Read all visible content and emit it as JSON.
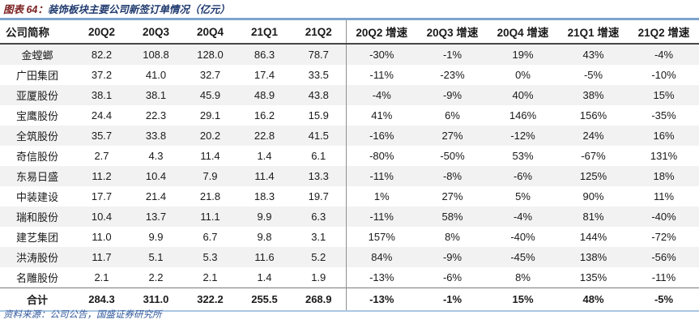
{
  "title": {
    "label": "图表 64：",
    "text": "装饰板块主要公司新签订单情况（亿元）"
  },
  "table": {
    "headers": [
      "公司简称",
      "20Q2",
      "20Q3",
      "20Q4",
      "21Q1",
      "21Q2",
      "20Q2 增速",
      "20Q3 增速",
      "20Q4 增速",
      "21Q1 增速",
      "21Q2 增速"
    ],
    "rows": [
      [
        "金螳螂",
        "82.2",
        "108.8",
        "128.0",
        "86.3",
        "78.7",
        "-30%",
        "-1%",
        "19%",
        "43%",
        "-4%"
      ],
      [
        "广田集团",
        "37.2",
        "41.0",
        "32.7",
        "17.4",
        "33.5",
        "-11%",
        "-23%",
        "0%",
        "-5%",
        "-10%"
      ],
      [
        "亚厦股份",
        "38.1",
        "38.1",
        "45.9",
        "48.9",
        "43.8",
        "-4%",
        "-9%",
        "40%",
        "38%",
        "15%"
      ],
      [
        "宝鹰股份",
        "24.4",
        "22.3",
        "29.1",
        "16.2",
        "15.9",
        "41%",
        "6%",
        "146%",
        "156%",
        "-35%"
      ],
      [
        "全筑股份",
        "35.7",
        "33.8",
        "20.2",
        "22.8",
        "41.5",
        "-16%",
        "27%",
        "-12%",
        "24%",
        "16%"
      ],
      [
        "奇信股份",
        "2.7",
        "4.3",
        "11.4",
        "1.4",
        "6.1",
        "-80%",
        "-50%",
        "53%",
        "-67%",
        "131%"
      ],
      [
        "东易日盛",
        "11.2",
        "10.4",
        "7.9",
        "11.4",
        "13.3",
        "-11%",
        "-8%",
        "-6%",
        "125%",
        "18%"
      ],
      [
        "中装建设",
        "17.7",
        "21.4",
        "21.8",
        "18.3",
        "19.7",
        "1%",
        "27%",
        "5%",
        "90%",
        "11%"
      ],
      [
        "瑞和股份",
        "10.4",
        "13.7",
        "11.1",
        "9.9",
        "6.3",
        "-11%",
        "58%",
        "-4%",
        "81%",
        "-40%"
      ],
      [
        "建艺集团",
        "11.0",
        "9.9",
        "6.7",
        "9.8",
        "3.1",
        "157%",
        "8%",
        "-40%",
        "144%",
        "-72%"
      ],
      [
        "洪涛股份",
        "11.7",
        "5.1",
        "5.3",
        "11.6",
        "5.2",
        "84%",
        "-9%",
        "-45%",
        "138%",
        "-56%"
      ],
      [
        "名雕股份",
        "2.1",
        "2.2",
        "2.1",
        "1.4",
        "1.9",
        "-13%",
        "-6%",
        "8%",
        "135%",
        "-11%"
      ]
    ],
    "total_row": [
      "合计",
      "284.3",
      "311.0",
      "322.2",
      "255.5",
      "268.9",
      "-13%",
      "-1%",
      "15%",
      "48%",
      "-5%"
    ]
  },
  "footer": {
    "source": "资料来源：公司公告，国盛证券研究所"
  },
  "colors": {
    "title_label": "#7a1f1f",
    "title_text": "#1f3a6e",
    "top_border": "#7fa3cd",
    "bottom_border": "#a9c7e2",
    "stripe": "#f2f2f2",
    "footer_text": "#33599c"
  }
}
